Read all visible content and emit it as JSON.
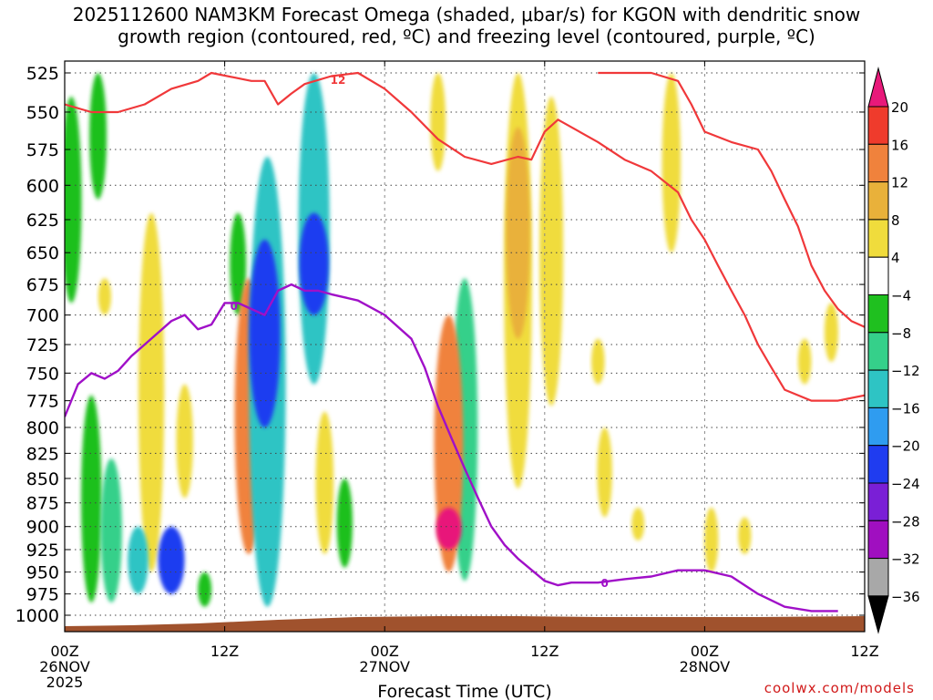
{
  "chart_data": {
    "type": "heatmap",
    "title_line1": "2025112600 NAM3KM Forecast Omega (shaded, μbar/s) for KGON with dendritic snow",
    "title_line2": "growth region (contoured, red, ºC) and freezing level (contoured, purple, ºC)",
    "xlabel": "Forecast Time (UTC)",
    "xlim": [
      0,
      60
    ],
    "ylim": [
      1000,
      525
    ],
    "yscale": "pressure",
    "grid": true,
    "y_ticks": [
      "525",
      "550",
      "575",
      "600",
      "625",
      "650",
      "675",
      "700",
      "725",
      "750",
      "775",
      "800",
      "825",
      "850",
      "875",
      "900",
      "925",
      "950",
      "975",
      "1000"
    ],
    "x_ticks": [
      {
        "hour": 0,
        "label": "00Z",
        "sub": "26NOV",
        "sub2": "2025"
      },
      {
        "hour": 12,
        "label": "12Z",
        "sub": "",
        "sub2": ""
      },
      {
        "hour": 24,
        "label": "00Z",
        "sub": "27NOV",
        "sub2": ""
      },
      {
        "hour": 36,
        "label": "12Z",
        "sub": "",
        "sub2": ""
      },
      {
        "hour": 48,
        "label": "00Z",
        "sub": "28NOV",
        "sub2": ""
      },
      {
        "hour": 60,
        "label": "12Z",
        "sub": "",
        "sub2": ""
      }
    ],
    "colorbar": {
      "labels": [
        "20",
        "16",
        "12",
        "8",
        "4",
        "−4",
        "−8",
        "−12",
        "−16",
        "−20",
        "−24",
        "−28",
        "−32",
        "−36"
      ],
      "colors": [
        "#e8197a",
        "#ef3b2c",
        "#f0823c",
        "#e9b13a",
        "#f0dc3c",
        "#ffffff",
        "#1fc01f",
        "#35d08a",
        "#2ec4c4",
        "#2f9cf0",
        "#1f3cf0",
        "#7a1fd6",
        "#a00fc0",
        "#a8a8a8",
        "#000000"
      ],
      "top_arrow_color": "#e8197a",
      "bottom_arrow_color": "#000000"
    },
    "omega_cells": [
      {
        "hour": 0.5,
        "p_top": 540,
        "p_bot": 690,
        "omega": -6
      },
      {
        "hour": 2.5,
        "p_top": 525,
        "p_bot": 610,
        "omega": -6
      },
      {
        "hour": 2.0,
        "p_top": 770,
        "p_bot": 985,
        "omega": -6
      },
      {
        "hour": 3.5,
        "p_top": 830,
        "p_bot": 985,
        "omega": -10
      },
      {
        "hour": 5.5,
        "p_top": 900,
        "p_bot": 975,
        "omega": -13
      },
      {
        "hour": 8.0,
        "p_top": 900,
        "p_bot": 975,
        "omega": -20
      },
      {
        "hour": 10.5,
        "p_top": 950,
        "p_bot": 990,
        "omega": -6
      },
      {
        "hour": 3.0,
        "p_top": 670,
        "p_bot": 700,
        "omega": 5
      },
      {
        "hour": 6.5,
        "p_top": 620,
        "p_bot": 950,
        "omega": 5
      },
      {
        "hour": 9.0,
        "p_top": 760,
        "p_bot": 870,
        "omega": 6
      },
      {
        "hour": 13.8,
        "p_top": 670,
        "p_bot": 930,
        "omega": 12
      },
      {
        "hour": 13.0,
        "p_top": 620,
        "p_bot": 700,
        "omega": -6
      },
      {
        "hour": 15.2,
        "p_top": 580,
        "p_bot": 990,
        "omega": -14
      },
      {
        "hour": 15.0,
        "p_top": 640,
        "p_bot": 800,
        "omega": -20
      },
      {
        "hour": 18.7,
        "p_top": 525,
        "p_bot": 760,
        "omega": -14
      },
      {
        "hour": 18.7,
        "p_top": 620,
        "p_bot": 700,
        "omega": -22
      },
      {
        "hour": 19.5,
        "p_top": 785,
        "p_bot": 930,
        "omega": 6
      },
      {
        "hour": 21.0,
        "p_top": 850,
        "p_bot": 945,
        "omega": -6
      },
      {
        "hour": 28.8,
        "p_top": 700,
        "p_bot": 950,
        "omega": 14
      },
      {
        "hour": 28.8,
        "p_top": 880,
        "p_bot": 925,
        "omega": 20
      },
      {
        "hour": 30.0,
        "p_top": 670,
        "p_bot": 960,
        "omega": -8
      },
      {
        "hour": 28.0,
        "p_top": 525,
        "p_bot": 590,
        "omega": 5
      },
      {
        "hour": 34.0,
        "p_top": 525,
        "p_bot": 860,
        "omega": 5
      },
      {
        "hour": 34.0,
        "p_top": 560,
        "p_bot": 720,
        "omega": 10
      },
      {
        "hour": 36.5,
        "p_top": 540,
        "p_bot": 780,
        "omega": 5
      },
      {
        "hour": 40.0,
        "p_top": 720,
        "p_bot": 760,
        "omega": 5
      },
      {
        "hour": 40.5,
        "p_top": 800,
        "p_bot": 890,
        "omega": 5
      },
      {
        "hour": 43.0,
        "p_top": 880,
        "p_bot": 915,
        "omega": 5
      },
      {
        "hour": 45.5,
        "p_top": 525,
        "p_bot": 650,
        "omega": 5
      },
      {
        "hour": 48.5,
        "p_top": 880,
        "p_bot": 950,
        "omega": 5
      },
      {
        "hour": 51.0,
        "p_top": 890,
        "p_bot": 930,
        "omega": 5
      },
      {
        "hour": 55.5,
        "p_top": 720,
        "p_bot": 760,
        "omega": 5
      },
      {
        "hour": 57.5,
        "p_top": 690,
        "p_bot": 740,
        "omega": 5
      }
    ],
    "dgz_label": "12",
    "dgz_upper": [
      [
        0,
        545
      ],
      [
        2,
        550
      ],
      [
        4,
        550
      ],
      [
        6,
        545
      ],
      [
        8,
        535
      ],
      [
        10,
        530
      ],
      [
        11,
        525
      ],
      [
        14,
        530
      ],
      [
        15,
        530
      ],
      [
        16,
        545
      ],
      [
        17,
        538
      ],
      [
        18,
        532
      ],
      [
        20,
        527
      ],
      [
        22,
        525
      ],
      [
        24,
        535
      ],
      [
        26,
        550
      ],
      [
        28,
        568
      ],
      [
        30,
        580
      ],
      [
        32,
        585
      ],
      [
        34,
        580
      ],
      [
        35,
        582
      ],
      [
        36,
        563
      ],
      [
        37,
        555
      ],
      [
        40,
        570
      ],
      [
        42,
        582
      ],
      [
        44,
        590
      ],
      [
        46,
        605
      ],
      [
        47,
        625
      ],
      [
        48,
        640
      ],
      [
        49,
        660
      ],
      [
        50,
        680
      ],
      [
        51,
        700
      ],
      [
        52,
        725
      ],
      [
        53,
        745
      ],
      [
        54,
        765
      ],
      [
        56,
        775
      ],
      [
        58,
        775
      ],
      [
        60,
        770
      ]
    ],
    "dgz_lower": [
      [
        40,
        525
      ],
      [
        44,
        525
      ],
      [
        46,
        530
      ],
      [
        47,
        545
      ],
      [
        48,
        563
      ],
      [
        50,
        570
      ],
      [
        52,
        575
      ],
      [
        53,
        590
      ],
      [
        54,
        610
      ],
      [
        55,
        630
      ],
      [
        56,
        660
      ],
      [
        57,
        680
      ],
      [
        58,
        695
      ],
      [
        59,
        705
      ],
      [
        60,
        710
      ]
    ],
    "freeze_label": "0",
    "freeze_level": [
      [
        0,
        790
      ],
      [
        1,
        760
      ],
      [
        2,
        750
      ],
      [
        3,
        755
      ],
      [
        4,
        748
      ],
      [
        5,
        735
      ],
      [
        6,
        725
      ],
      [
        8,
        705
      ],
      [
        9,
        700
      ],
      [
        10,
        712
      ],
      [
        11,
        708
      ],
      [
        12,
        690
      ],
      [
        13,
        690
      ],
      [
        14,
        695
      ],
      [
        15,
        700
      ],
      [
        16,
        680
      ],
      [
        17,
        675
      ],
      [
        18,
        680
      ],
      [
        19,
        680
      ],
      [
        20,
        683
      ],
      [
        22,
        688
      ],
      [
        24,
        700
      ],
      [
        26,
        720
      ],
      [
        27,
        745
      ],
      [
        28,
        780
      ],
      [
        29,
        810
      ],
      [
        30,
        840
      ],
      [
        31,
        870
      ],
      [
        32,
        900
      ],
      [
        33,
        920
      ],
      [
        34,
        935
      ],
      [
        36,
        960
      ],
      [
        37,
        965
      ],
      [
        38,
        962
      ],
      [
        40,
        962
      ],
      [
        42,
        958
      ],
      [
        44,
        955
      ],
      [
        46,
        948
      ],
      [
        48,
        948
      ],
      [
        50,
        955
      ],
      [
        52,
        975
      ],
      [
        54,
        990
      ],
      [
        56,
        995
      ],
      [
        58,
        995
      ]
    ]
  },
  "credit": "coolwx.com/models"
}
